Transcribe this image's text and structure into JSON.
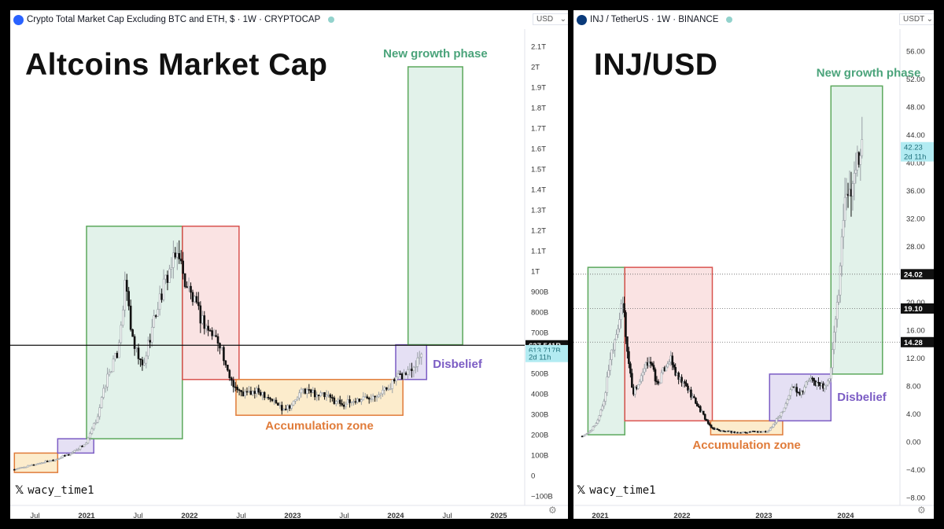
{
  "left": {
    "header": "Crypto Total Market Cap Excluding BTC and ETH, $ · 1W · CRYPTOCAP",
    "currency": "USD",
    "title": "Altcoins Market Cap",
    "handle": "wacy_time1",
    "colors": {
      "logo": "#2962ff",
      "green": "#5ca85c",
      "red": "#d9534f",
      "orange": "#e07b39",
      "purple": "#7b5cc4"
    }
  },
  "right": {
    "header": "INJ / TetherUS · 1W · BINANCE",
    "currency": "USDT",
    "title": "INJ/USD",
    "handle": "wacy_time1",
    "colors": {
      "logo": "#0082fa"
    }
  },
  "chart_data": [
    {
      "type": "candlestick",
      "title": "Altcoins Market Cap",
      "header": "Crypto Total Market Cap Excluding BTC and ETH, $ · 1W · CRYPTOCAP",
      "y_ticks": [
        "2.1T",
        "2T",
        "1.9T",
        "1.8T",
        "1.7T",
        "1.6T",
        "1.5T",
        "1.4T",
        "1.3T",
        "1.2T",
        "1.1T",
        "1T",
        "900B",
        "800B",
        "700B",
        "600B",
        "500B",
        "400B",
        "300B",
        "200B",
        "100B",
        "0",
        "−100B"
      ],
      "x_ticks": [
        "Jul",
        "2021",
        "Jul",
        "2022",
        "Jul",
        "2023",
        "Jul",
        "2024",
        "Jul",
        "2025"
      ],
      "ylim_billions": [
        -100,
        2100
      ],
      "price_labels": [
        {
          "text": "637.541B",
          "value_b": 637.5,
          "style": "black"
        },
        {
          "text": "613.717B",
          "value_b": 613.7,
          "style": "current"
        },
        {
          "text": "2d 11h",
          "value_b": 580,
          "style": "countdown"
        }
      ],
      "horizontal_line_b": 637.5,
      "zones": [
        {
          "label": "",
          "color": "orange",
          "t": [
            2020.3,
            2020.72
          ],
          "v": [
            15,
            110
          ]
        },
        {
          "label": "",
          "color": "purple",
          "t": [
            2020.72,
            2021.07
          ],
          "v": [
            110,
            180
          ]
        },
        {
          "label": "",
          "color": "green",
          "t": [
            2021.0,
            2021.93
          ],
          "v": [
            180,
            1220
          ]
        },
        {
          "label": "",
          "color": "red",
          "t": [
            2021.93,
            2022.48
          ],
          "v": [
            470,
            1220
          ]
        },
        {
          "label": "Accumulation zone",
          "color": "orange",
          "t": [
            2022.45,
            2024.07
          ],
          "v": [
            295,
            470
          ]
        },
        {
          "label": "Disbelief",
          "color": "purple",
          "t": [
            2024.0,
            2024.3
          ],
          "v": [
            470,
            640
          ]
        },
        {
          "label": "New growth phase",
          "color": "green",
          "t": [
            2024.12,
            2024.65
          ],
          "v": [
            640,
            2000
          ]
        }
      ],
      "series": [
        {
          "name": "",
          "time": [
            2020.3,
            2020.5,
            2020.7,
            2020.85,
            2021.0,
            2021.1,
            2021.2,
            2021.3,
            2021.38,
            2021.45,
            2021.55,
            2021.6,
            2021.7,
            2021.8,
            2021.9,
            2021.93,
            2022.0,
            2022.1,
            2022.2,
            2022.3,
            2022.35,
            2022.45,
            2022.5,
            2022.7,
            2022.9,
            2023.0,
            2023.1,
            2023.3,
            2023.5,
            2023.7,
            2023.9,
            2024.0,
            2024.1,
            2024.2,
            2024.25
          ],
          "value_b": [
            30,
            55,
            80,
            110,
            160,
            280,
            480,
            600,
            950,
            640,
            520,
            650,
            850,
            1000,
            1100,
            980,
            900,
            780,
            700,
            650,
            520,
            430,
            400,
            410,
            330,
            350,
            420,
            390,
            350,
            380,
            420,
            470,
            500,
            560,
            614
          ]
        }
      ]
    },
    {
      "type": "candlestick",
      "title": "INJ/USD",
      "header": "INJ / TetherUS · 1W · BINANCE",
      "y_ticks": [
        "56.00",
        "52.00",
        "48.00",
        "44.00",
        "40.00",
        "36.00",
        "32.00",
        "28.00",
        "24.00",
        "20.00",
        "16.00",
        "12.00",
        "8.00",
        "4.00",
        "0.00",
        "−4.00",
        "−8.00"
      ],
      "x_ticks": [
        "2021",
        "2022",
        "2023",
        "2024"
      ],
      "ylim": [
        -8,
        58
      ],
      "price_labels": [
        {
          "text": "42.23",
          "value": 42.23,
          "style": "current"
        },
        {
          "text": "2d 11h",
          "value": 40.9,
          "style": "countdown"
        },
        {
          "text": "24.02",
          "value": 24.02,
          "style": "black"
        },
        {
          "text": "19.10",
          "value": 19.1,
          "style": "black"
        },
        {
          "text": "14.28",
          "value": 14.28,
          "style": "black"
        }
      ],
      "dotted_levels": [
        24.02,
        19.1,
        14.28
      ],
      "zones": [
        {
          "label": "",
          "color": "green",
          "t": [
            2020.85,
            2021.3
          ],
          "v": [
            1,
            25
          ]
        },
        {
          "label": "",
          "color": "red",
          "t": [
            2021.3,
            2022.37
          ],
          "v": [
            3,
            25
          ]
        },
        {
          "label": "Accumulation zone",
          "color": "orange",
          "t": [
            2022.35,
            2023.23
          ],
          "v": [
            1,
            3
          ]
        },
        {
          "label": "Disbelief",
          "color": "purple",
          "t": [
            2023.07,
            2023.82
          ],
          "v": [
            3,
            9.7
          ]
        },
        {
          "label": "New growth phase",
          "color": "green",
          "t": [
            2023.82,
            2024.45
          ],
          "v": [
            9.7,
            51
          ]
        }
      ],
      "series": [
        {
          "name": "",
          "time": [
            2020.78,
            2020.85,
            2020.95,
            2021.05,
            2021.12,
            2021.2,
            2021.28,
            2021.33,
            2021.4,
            2021.5,
            2021.6,
            2021.7,
            2021.8,
            2021.85,
            2021.95,
            2022.05,
            2022.15,
            2022.25,
            2022.35,
            2022.5,
            2022.7,
            2022.9,
            2023.05,
            2023.15,
            2023.25,
            2023.35,
            2023.45,
            2023.55,
            2023.7,
            2023.8,
            2023.85,
            2023.9,
            2023.95,
            2024.0,
            2024.05,
            2024.12,
            2024.2
          ],
          "value": [
            0.8,
            1.2,
            2.5,
            6,
            12,
            16,
            20,
            13,
            7,
            9,
            12,
            8,
            11,
            12,
            9,
            8,
            6,
            4,
            2,
            1.5,
            1.3,
            1.5,
            1.4,
            3,
            5,
            8,
            7,
            9,
            8,
            8.5,
            14,
            20,
            28,
            38,
            34,
            40,
            42.23
          ]
        }
      ]
    }
  ]
}
